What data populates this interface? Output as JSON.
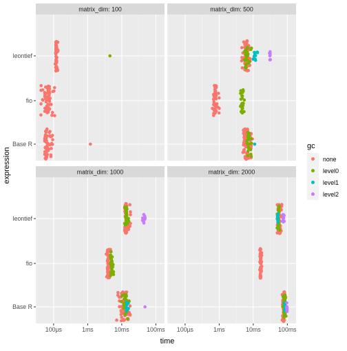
{
  "chart_data": {
    "type": "scatter",
    "facet_label_prefix": "matrix_dim: ",
    "xlabel": "time",
    "ylabel": "expression",
    "x_scale": "log10",
    "x_unit": "seconds",
    "xlim": [
      3e-05,
      0.18
    ],
    "x_ticks": [
      {
        "value": 0.0001,
        "label": "100µs"
      },
      {
        "value": 0.001,
        "label": "1ms"
      },
      {
        "value": 0.01,
        "label": "10ms"
      },
      {
        "value": 0.1,
        "label": "100ms"
      }
    ],
    "categories": [
      "Base R",
      "fio",
      "leontief"
    ],
    "legend": {
      "title": "gc",
      "position": "right",
      "entries": [
        {
          "name": "none",
          "color": "#F8766D"
        },
        {
          "name": "level0",
          "color": "#7CAE00"
        },
        {
          "name": "level1",
          "color": "#00BFC4"
        },
        {
          "name": "level2",
          "color": "#C77CFF"
        }
      ]
    },
    "facets": [
      {
        "matrix_dim": "100",
        "groups": [
          {
            "expression": "leontief",
            "gc": "none",
            "x_min": 0.00011,
            "x_max": 0.000135,
            "x_median": 0.00012
          },
          {
            "expression": "leontief",
            "gc": "level0",
            "x_min": 0.0045,
            "x_max": 0.0045,
            "x_median": 0.0045
          },
          {
            "expression": "fio",
            "gc": "none",
            "x_min": 4e-05,
            "x_max": 0.000115,
            "x_median": 6.5e-05
          },
          {
            "expression": "Base R",
            "gc": "none",
            "x_min": 5.5e-05,
            "x_max": 9.5e-05,
            "x_median": 6e-05
          },
          {
            "expression": "Base R",
            "gc": "none",
            "x_min": 0.0012,
            "x_max": 0.0012,
            "x_median": 0.0012
          }
        ]
      },
      {
        "matrix_dim": "500",
        "groups": [
          {
            "expression": "leontief",
            "gc": "none",
            "x_min": 0.0045,
            "x_max": 0.0082,
            "x_median": 0.0062
          },
          {
            "expression": "leontief",
            "gc": "level0",
            "x_min": 0.0053,
            "x_max": 0.0095,
            "x_median": 0.0065
          },
          {
            "expression": "leontief",
            "gc": "level1",
            "x_min": 0.0095,
            "x_max": 0.0135,
            "x_median": 0.011
          },
          {
            "expression": "leontief",
            "gc": "level2",
            "x_min": 0.03,
            "x_max": 0.033,
            "x_median": 0.031
          },
          {
            "expression": "fio",
            "gc": "none",
            "x_min": 0.00062,
            "x_max": 0.00105,
            "x_median": 0.00075
          },
          {
            "expression": "fio",
            "gc": "level0",
            "x_min": 0.0042,
            "x_max": 0.0055,
            "x_median": 0.0048
          },
          {
            "expression": "Base R",
            "gc": "none",
            "x_min": 0.0045,
            "x_max": 0.0095,
            "x_median": 0.0058
          },
          {
            "expression": "Base R",
            "gc": "level0",
            "x_min": 0.006,
            "x_max": 0.009,
            "x_median": 0.007
          },
          {
            "expression": "Base R",
            "gc": "level1",
            "x_min": 0.011,
            "x_max": 0.011,
            "x_median": 0.011
          }
        ]
      },
      {
        "matrix_dim": "1000",
        "groups": [
          {
            "expression": "leontief",
            "gc": "none",
            "x_min": 0.012,
            "x_max": 0.018,
            "x_median": 0.013
          },
          {
            "expression": "leontief",
            "gc": "level0",
            "x_min": 0.012,
            "x_max": 0.016,
            "x_median": 0.014
          },
          {
            "expression": "leontief",
            "gc": "level2",
            "x_min": 0.04,
            "x_max": 0.05,
            "x_median": 0.045
          },
          {
            "expression": "fio",
            "gc": "none",
            "x_min": 0.0035,
            "x_max": 0.005,
            "x_median": 0.004
          },
          {
            "expression": "fio",
            "gc": "level0",
            "x_min": 0.0045,
            "x_max": 0.0062,
            "x_median": 0.005
          },
          {
            "expression": "Base R",
            "gc": "none",
            "x_min": 0.007,
            "x_max": 0.018,
            "x_median": 0.011
          },
          {
            "expression": "Base R",
            "gc": "level0",
            "x_min": 0.009,
            "x_max": 0.017,
            "x_median": 0.013
          },
          {
            "expression": "Base R",
            "gc": "level1",
            "x_min": 0.013,
            "x_max": 0.016,
            "x_median": 0.014
          },
          {
            "expression": "Base R",
            "gc": "level2",
            "x_min": 0.048,
            "x_max": 0.048,
            "x_median": 0.048
          }
        ]
      },
      {
        "matrix_dim": "2000",
        "groups": [
          {
            "expression": "leontief",
            "gc": "none",
            "x_min": 0.05,
            "x_max": 0.07,
            "x_median": 0.056
          },
          {
            "expression": "leontief",
            "gc": "level0",
            "x_min": 0.05,
            "x_max": 0.06,
            "x_median": 0.055
          },
          {
            "expression": "leontief",
            "gc": "level1",
            "x_min": 0.05,
            "x_max": 0.055,
            "x_median": 0.052
          },
          {
            "expression": "leontief",
            "gc": "level2",
            "x_min": 0.07,
            "x_max": 0.085,
            "x_median": 0.077
          },
          {
            "expression": "fio",
            "gc": "none",
            "x_min": 0.0155,
            "x_max": 0.018,
            "x_median": 0.0165
          },
          {
            "expression": "Base R",
            "gc": "none",
            "x_min": 0.07,
            "x_max": 0.09,
            "x_median": 0.08
          },
          {
            "expression": "Base R",
            "gc": "level0",
            "x_min": 0.072,
            "x_max": 0.092,
            "x_median": 0.082
          },
          {
            "expression": "Base R",
            "gc": "level1",
            "x_min": 0.08,
            "x_max": 0.09,
            "x_median": 0.085
          },
          {
            "expression": "Base R",
            "gc": "level2",
            "x_min": 0.095,
            "x_max": 0.1,
            "x_median": 0.097
          }
        ]
      }
    ]
  }
}
